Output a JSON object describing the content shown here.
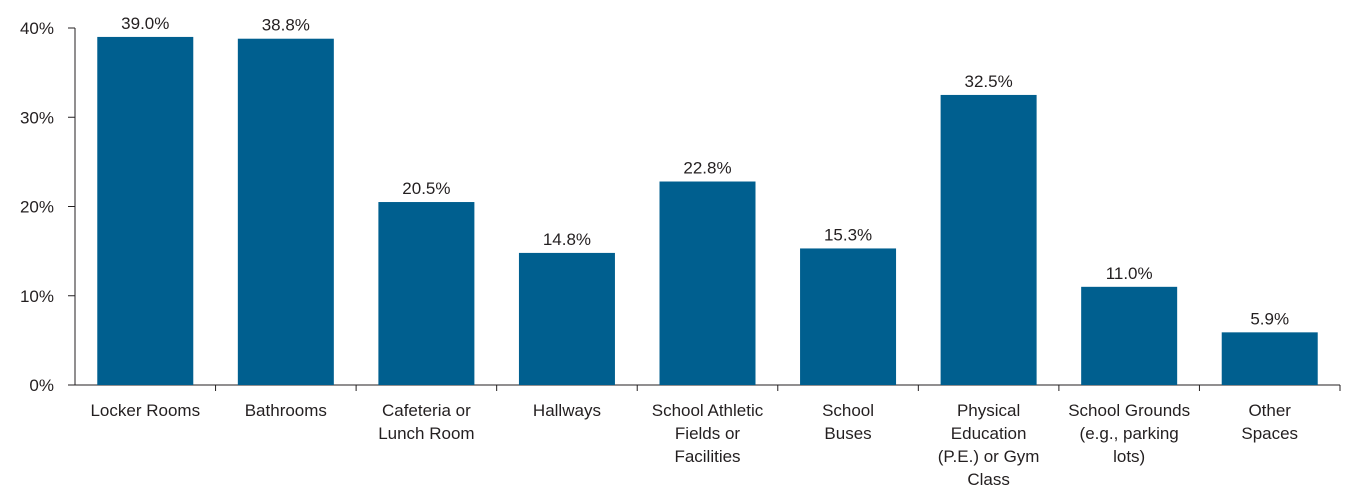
{
  "chart_data": {
    "type": "bar",
    "title": "",
    "xlabel": "",
    "ylabel": "",
    "ylim": [
      0,
      40
    ],
    "yticks": [
      0,
      10,
      20,
      30,
      40
    ],
    "ytick_labels": [
      "0%",
      "10%",
      "20%",
      "30%",
      "40%"
    ],
    "grid": false,
    "bar_color": "#005f8f",
    "categories": [
      [
        "Locker Rooms"
      ],
      [
        "Bathrooms"
      ],
      [
        "Cafeteria or",
        "Lunch Room"
      ],
      [
        "Hallways"
      ],
      [
        "School Athletic",
        "Fields or",
        "Facilities"
      ],
      [
        "School",
        "Buses"
      ],
      [
        "Physical",
        "Education",
        "(P.E.) or Gym",
        "Class"
      ],
      [
        "School Grounds",
        "(e.g., parking",
        "lots)"
      ],
      [
        "Other",
        "Spaces"
      ]
    ],
    "values": [
      39.0,
      38.8,
      20.5,
      14.8,
      22.8,
      15.3,
      32.5,
      11.0,
      5.9
    ],
    "value_labels": [
      "39.0%",
      "38.8%",
      "20.5%",
      "14.8%",
      "22.8%",
      "15.3%",
      "32.5%",
      "11.0%",
      "5.9%"
    ]
  }
}
